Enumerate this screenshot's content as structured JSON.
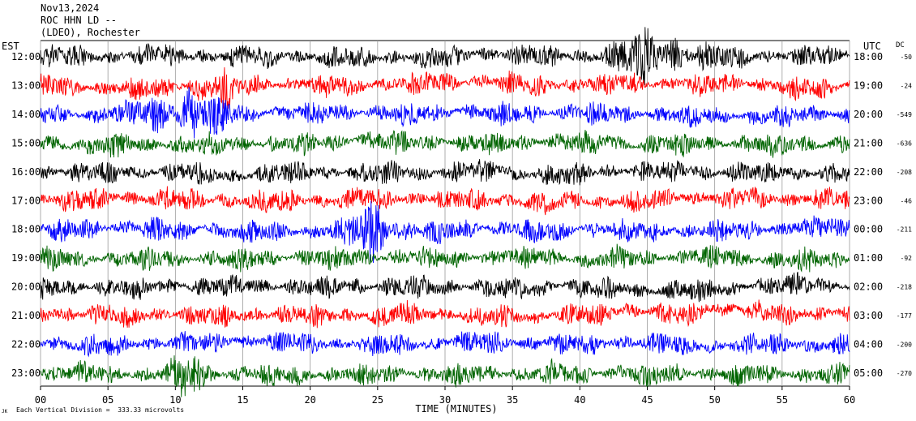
{
  "header": {
    "date": "Nov13,2024",
    "station": "ROC HHN LD --",
    "location": "(LDEO), Rochester"
  },
  "chart_data": {
    "type": "line",
    "title": "",
    "xlabel": "TIME (MINUTES)",
    "ylabel_left": "EST",
    "ylabel_right": "UTC",
    "dc_label": "DC",
    "xlim": [
      0,
      60
    ],
    "x_ticks": [
      "00",
      "05",
      "10",
      "15",
      "20",
      "25",
      "30",
      "35",
      "40",
      "45",
      "50",
      "55",
      "60"
    ],
    "grid": "vertical-every-5-min",
    "series": [
      {
        "est": "12:00",
        "utc": "18:00",
        "dc": "-50",
        "color": "#000000"
      },
      {
        "est": "13:00",
        "utc": "19:00",
        "dc": "-24",
        "color": "#ff0000"
      },
      {
        "est": "14:00",
        "utc": "20:00",
        "dc": "-549",
        "color": "#0000ff"
      },
      {
        "est": "15:00",
        "utc": "21:00",
        "dc": "-636",
        "color": "#006400"
      },
      {
        "est": "16:00",
        "utc": "22:00",
        "dc": "-208",
        "color": "#000000"
      },
      {
        "est": "17:00",
        "utc": "23:00",
        "dc": "-46",
        "color": "#ff0000"
      },
      {
        "est": "18:00",
        "utc": "00:00",
        "dc": "-211",
        "color": "#0000ff"
      },
      {
        "est": "19:00",
        "utc": "01:00",
        "dc": "-92",
        "color": "#006400"
      },
      {
        "est": "20:00",
        "utc": "02:00",
        "dc": "-218",
        "color": "#000000"
      },
      {
        "est": "21:00",
        "utc": "03:00",
        "dc": "-177",
        "color": "#ff0000"
      },
      {
        "est": "22:00",
        "utc": "04:00",
        "dc": "-200",
        "color": "#0000ff"
      },
      {
        "est": "23:00",
        "utc": "05:00",
        "dc": "-270",
        "color": "#006400"
      }
    ],
    "annotations": {
      "scale": "Each Vertical Division =  333.33 microvolts",
      "corner_mark": "JK"
    }
  }
}
